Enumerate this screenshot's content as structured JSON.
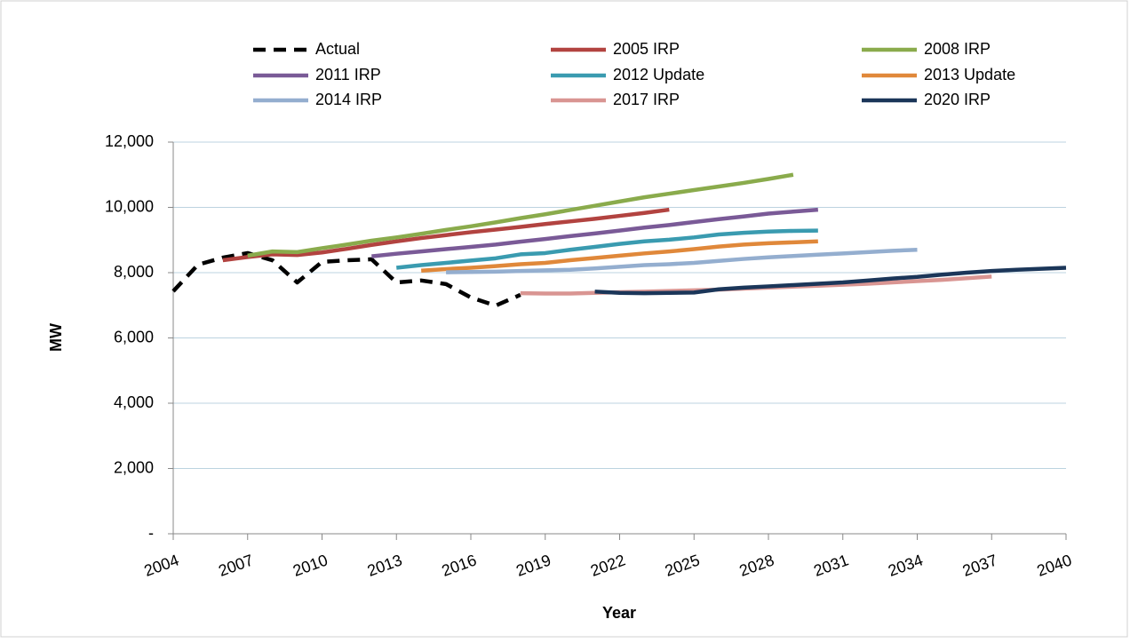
{
  "chart_data": {
    "type": "line",
    "x_label": "Year",
    "y_label": "MW",
    "x": [
      2004,
      2005,
      2006,
      2007,
      2008,
      2009,
      2010,
      2011,
      2012,
      2013,
      2014,
      2015,
      2016,
      2017,
      2018,
      2019,
      2020,
      2021,
      2022,
      2023,
      2024,
      2025,
      2026,
      2027,
      2028,
      2029,
      2030,
      2031,
      2032,
      2033,
      2034,
      2035,
      2036,
      2037,
      2038,
      2039,
      2040
    ],
    "xlim": [
      2004,
      2040
    ],
    "xticks": [
      2004,
      2007,
      2010,
      2013,
      2016,
      2019,
      2022,
      2025,
      2028,
      2031,
      2034,
      2037,
      2040
    ],
    "ylim": [
      0,
      12000
    ],
    "yticks": [
      {
        "value": 0,
        "label": "-"
      },
      {
        "value": 2000,
        "label": "2,000"
      },
      {
        "value": 4000,
        "label": "4,000"
      },
      {
        "value": 6000,
        "label": "6,000"
      },
      {
        "value": 8000,
        "label": "8,000"
      },
      {
        "value": 10000,
        "label": "10,000"
      },
      {
        "value": 12000,
        "label": "12,000"
      }
    ],
    "grid": true,
    "legend": "top",
    "series": [
      {
        "name": "Actual",
        "color": "#000000",
        "dashed": true,
        "values": [
          7430,
          8245,
          8460,
          8600,
          8380,
          7700,
          8330,
          8380,
          8410,
          7700,
          7760,
          7650,
          7240,
          6990,
          7320,
          null,
          null,
          null,
          null,
          null,
          null,
          null,
          null,
          null,
          null,
          null,
          null,
          null,
          null,
          null,
          null,
          null,
          null,
          null,
          null,
          null,
          null
        ]
      },
      {
        "name": "2005 IRP",
        "color": "#b24340",
        "values": [
          null,
          null,
          8380,
          8480,
          8560,
          8540,
          8620,
          8730,
          8850,
          8960,
          9060,
          9150,
          9240,
          9320,
          9400,
          9490,
          9570,
          9650,
          9740,
          9830,
          9930,
          null,
          null,
          null,
          null,
          null,
          null,
          null,
          null,
          null,
          null,
          null,
          null,
          null,
          null,
          null,
          null
        ]
      },
      {
        "name": "2008 IRP",
        "color": "#8aab4c",
        "values": [
          null,
          null,
          null,
          8520,
          8650,
          8630,
          8750,
          8860,
          8980,
          9080,
          9190,
          9310,
          9420,
          9540,
          9670,
          9790,
          9920,
          10050,
          10180,
          10310,
          10420,
          10530,
          10640,
          10750,
          10870,
          11000,
          null,
          null,
          null,
          null,
          null,
          null,
          null,
          null,
          null,
          null,
          null
        ]
      },
      {
        "name": "2011 IRP",
        "color": "#7a5a97",
        "values": [
          null,
          null,
          null,
          null,
          null,
          null,
          null,
          null,
          8500,
          8580,
          8650,
          8720,
          8790,
          8860,
          8950,
          9030,
          9120,
          9200,
          9290,
          9380,
          9460,
          9550,
          9640,
          9720,
          9810,
          9870,
          9930,
          null,
          null,
          null,
          null,
          null,
          null,
          null,
          null,
          null,
          null
        ]
      },
      {
        "name": "2012 Update",
        "color": "#3a9bb0",
        "values": [
          null,
          null,
          null,
          null,
          null,
          null,
          null,
          null,
          null,
          8150,
          8230,
          8300,
          8370,
          8440,
          8560,
          8600,
          8700,
          8790,
          8880,
          8960,
          9010,
          9080,
          9170,
          9220,
          9260,
          9280,
          9290,
          null,
          null,
          null,
          null,
          null,
          null,
          null,
          null,
          null,
          null
        ]
      },
      {
        "name": "2013 Update",
        "color": "#e0883a",
        "values": [
          null,
          null,
          null,
          null,
          null,
          null,
          null,
          null,
          null,
          null,
          8060,
          8110,
          8150,
          8200,
          8260,
          8300,
          8380,
          8450,
          8520,
          8590,
          8650,
          8720,
          8800,
          8860,
          8900,
          8930,
          8960,
          null,
          null,
          null,
          null,
          null,
          null,
          null,
          null,
          null,
          null
        ]
      },
      {
        "name": "2014 IRP",
        "color": "#94aecf",
        "values": [
          null,
          null,
          null,
          null,
          null,
          null,
          null,
          null,
          null,
          null,
          null,
          8010,
          8020,
          8030,
          8050,
          8070,
          8090,
          8130,
          8180,
          8230,
          8260,
          8300,
          8360,
          8420,
          8470,
          8510,
          8550,
          8590,
          8630,
          8670,
          8700,
          null,
          null,
          null,
          null,
          null,
          null
        ]
      },
      {
        "name": "2017 IRP",
        "color": "#d99592",
        "values": [
          null,
          null,
          null,
          null,
          null,
          null,
          null,
          null,
          null,
          null,
          null,
          null,
          null,
          null,
          7370,
          7360,
          7360,
          7380,
          7400,
          7420,
          7440,
          7460,
          7480,
          7510,
          7540,
          7570,
          7600,
          7630,
          7660,
          7700,
          7740,
          7780,
          7830,
          7880,
          null,
          null,
          null
        ]
      },
      {
        "name": "2020 IRP",
        "color": "#1b3659",
        "values": [
          null,
          null,
          null,
          null,
          null,
          null,
          null,
          null,
          null,
          null,
          null,
          null,
          null,
          null,
          null,
          null,
          null,
          7420,
          7380,
          7370,
          7380,
          7390,
          7490,
          7540,
          7580,
          7620,
          7660,
          7700,
          7760,
          7820,
          7870,
          7940,
          8000,
          8050,
          8090,
          8120,
          8150
        ]
      }
    ]
  }
}
